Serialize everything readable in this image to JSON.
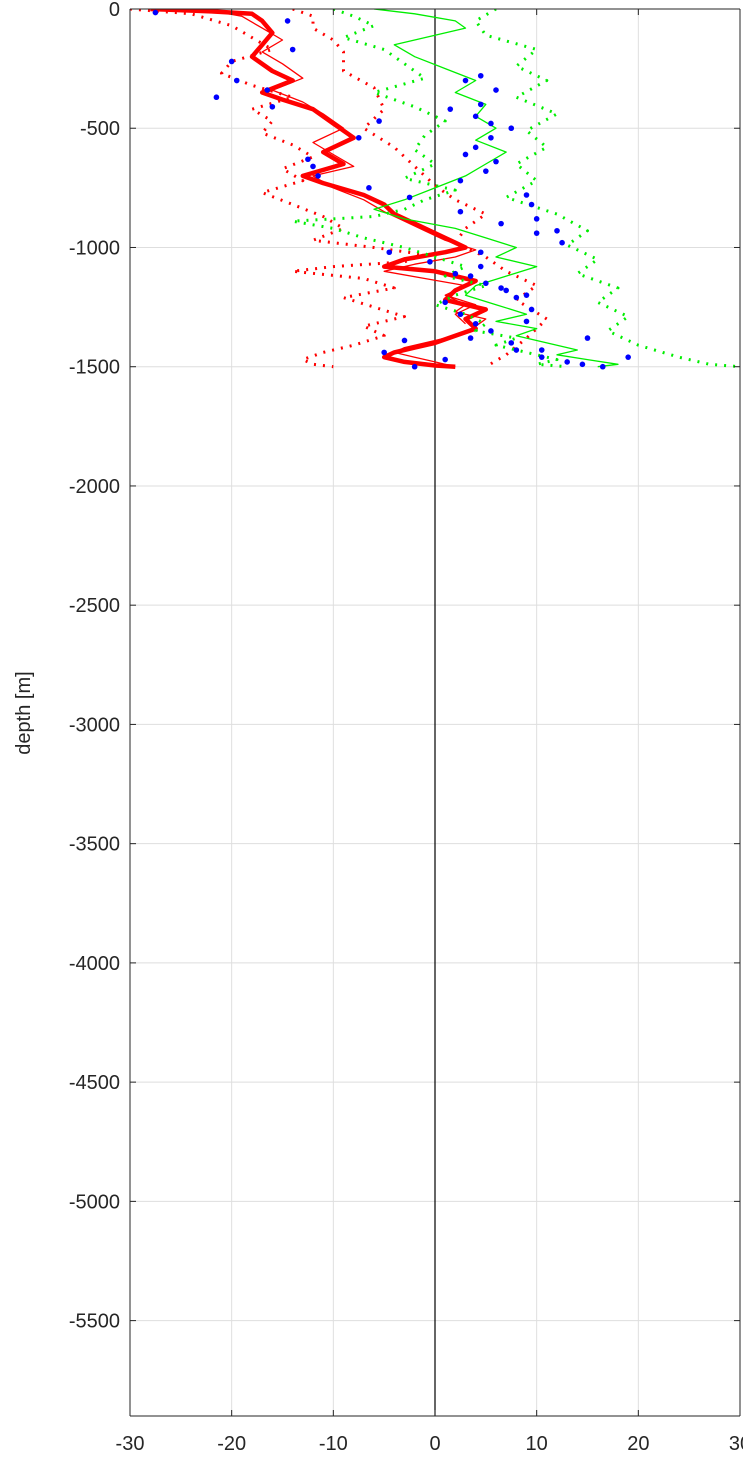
{
  "chart_data": {
    "type": "line",
    "title": "",
    "xlabel": "",
    "ylabel": "depth [m]",
    "xlim": [
      -30,
      30
    ],
    "ylim": [
      -5900,
      0
    ],
    "xticks": [
      -30,
      -20,
      -10,
      0,
      10,
      20,
      30
    ],
    "xtick_labels": [
      "-30",
      "-20",
      "-10",
      "0",
      "10",
      "20",
      "30"
    ],
    "yticks": [
      0,
      -500,
      -1000,
      -1500,
      -2000,
      -2500,
      -3000,
      -3500,
      -4000,
      -4500,
      -5000,
      -5500
    ],
    "ytick_labels": [
      "0",
      "-500",
      "-1000",
      "-1500",
      "-2000",
      "-2500",
      "-3000",
      "-3500",
      "-4000",
      "-4500",
      "-5000",
      "-5500"
    ],
    "grid": true,
    "legend": "none",
    "zero_line": 0,
    "series": [
      {
        "color": "#ff0000",
        "style": "solid-bold",
        "x": [
          -28,
          -22,
          -18,
          -17,
          -16,
          -17,
          -18,
          -16,
          -14,
          -17,
          -15,
          -12,
          -10,
          -8,
          -11,
          -9,
          -13,
          -11,
          -7,
          -5,
          -4,
          -2,
          0,
          2,
          3,
          1,
          -3,
          -5,
          0,
          4,
          2,
          1,
          5,
          3,
          4,
          2,
          0,
          -2,
          -4,
          -5,
          -3,
          0,
          2
        ],
        "y": [
          0,
          -10,
          -20,
          -50,
          -100,
          -150,
          -200,
          -260,
          -300,
          -350,
          -380,
          -420,
          -480,
          -540,
          -600,
          -650,
          -700,
          -730,
          -780,
          -820,
          -860,
          -900,
          -940,
          -980,
          -1000,
          -1020,
          -1050,
          -1080,
          -1100,
          -1140,
          -1180,
          -1220,
          -1260,
          -1300,
          -1340,
          -1370,
          -1400,
          -1420,
          -1440,
          -1460,
          -1480,
          -1495,
          -1500
        ]
      },
      {
        "color": "#ff0000",
        "style": "solid-thin-upper",
        "x": [
          -23,
          -19,
          -17,
          -15,
          -17,
          -15,
          -13,
          -16,
          -13,
          -11,
          -9,
          -12,
          -10,
          -8,
          -12,
          -10,
          -7,
          -5,
          -3,
          -1,
          1,
          4,
          2,
          -2,
          -5,
          -1,
          3,
          1,
          4,
          2,
          3
        ],
        "y": [
          0,
          -30,
          -80,
          -130,
          -180,
          -230,
          -290,
          -340,
          -390,
          -440,
          -500,
          -560,
          -610,
          -660,
          -700,
          -750,
          -800,
          -850,
          -890,
          -930,
          -970,
          -1010,
          -1040,
          -1070,
          -1100,
          -1130,
          -1160,
          -1200,
          -1240,
          -1280,
          -1320
        ]
      },
      {
        "color": "#ff0000",
        "style": "solid-thin-lower",
        "x": [
          1,
          3,
          2,
          5,
          4,
          3,
          1,
          -1,
          -3,
          -4,
          -2,
          0,
          2
        ],
        "y": [
          -1200,
          -1240,
          -1270,
          -1300,
          -1330,
          -1360,
          -1380,
          -1400,
          -1420,
          -1440,
          -1460,
          -1480,
          -1500
        ]
      },
      {
        "color": "#ff0000",
        "style": "dotted",
        "x": [
          -30,
          -24,
          -20,
          -18,
          -16,
          -20,
          -21,
          -18,
          -14,
          -18,
          -16,
          -17,
          -14,
          -12,
          -15,
          -13,
          -17,
          -14,
          -11,
          -9,
          -12,
          -6,
          -1,
          -3,
          -10,
          -14,
          -7,
          -4,
          -9,
          -6,
          -3,
          -7,
          -5,
          -8,
          -11,
          -13,
          -12,
          -10
        ],
        "y": [
          0,
          -20,
          -70,
          -120,
          -170,
          -220,
          -270,
          -320,
          -370,
          -420,
          -470,
          -520,
          -570,
          -620,
          -670,
          -720,
          -770,
          -820,
          -870,
          -920,
          -970,
          -1000,
          -1030,
          -1060,
          -1080,
          -1100,
          -1130,
          -1170,
          -1210,
          -1250,
          -1290,
          -1330,
          -1370,
          -1410,
          -1440,
          -1470,
          -1490,
          -1500
        ]
      },
      {
        "color": "#ff0000",
        "style": "dotted",
        "x": [
          -14,
          -12,
          -12,
          -10,
          -9,
          -9,
          -6,
          -5,
          -7,
          -4,
          -2,
          0,
          2,
          5,
          3,
          2,
          5,
          7,
          10,
          8,
          11,
          9,
          7,
          5
        ],
        "y": [
          0,
          -30,
          -80,
          -130,
          -180,
          -260,
          -330,
          -420,
          -500,
          -580,
          -660,
          -740,
          -800,
          -860,
          -920,
          -980,
          -1040,
          -1100,
          -1160,
          -1220,
          -1300,
          -1380,
          -1450,
          -1500
        ]
      },
      {
        "color": "#00ee00",
        "style": "solid",
        "x": [
          -6,
          -2,
          2,
          3,
          0,
          -4,
          -2,
          1,
          4,
          2,
          5,
          4,
          6,
          4,
          7,
          5,
          3,
          0,
          -3,
          -6,
          -3,
          2,
          5,
          8,
          6,
          10,
          7,
          4,
          3,
          6,
          9,
          6,
          10,
          8,
          11,
          14,
          12,
          15,
          18,
          16
        ],
        "y": [
          0,
          -20,
          -50,
          -80,
          -110,
          -150,
          -200,
          -250,
          -300,
          -350,
          -400,
          -450,
          -500,
          -550,
          -600,
          -650,
          -700,
          -750,
          -800,
          -840,
          -880,
          -920,
          -960,
          -1000,
          -1040,
          -1080,
          -1120,
          -1160,
          -1200,
          -1240,
          -1280,
          -1310,
          -1340,
          -1370,
          -1400,
          -1430,
          -1450,
          -1470,
          -1490,
          -1500
        ]
      },
      {
        "color": "#00ee00",
        "style": "dotted",
        "x": [
          -10,
          -8,
          -6,
          -9,
          -5,
          -3,
          -1,
          -6,
          -2,
          1,
          -1,
          -2,
          0,
          -3,
          2,
          -1,
          -3,
          -6,
          -14,
          -10,
          -7,
          -3,
          0,
          3,
          1,
          5,
          2,
          0,
          3,
          5,
          4,
          8,
          6,
          9,
          12,
          10,
          13
        ],
        "y": [
          0,
          -30,
          -70,
          -120,
          -170,
          -230,
          -290,
          -350,
          -410,
          -470,
          -530,
          -590,
          -650,
          -710,
          -760,
          -800,
          -840,
          -870,
          -890,
          -920,
          -960,
          -1000,
          -1040,
          -1080,
          -1120,
          -1160,
          -1200,
          -1240,
          -1280,
          -1320,
          -1350,
          -1380,
          -1410,
          -1440,
          -1470,
          -1490,
          -1500
        ]
      },
      {
        "color": "#00ee00",
        "style": "dotted",
        "x": [
          6,
          4,
          5,
          10,
          8,
          11,
          8,
          12,
          9,
          11,
          8,
          10,
          7,
          12,
          15,
          13,
          16,
          14,
          18,
          16,
          19,
          17,
          20,
          24,
          27,
          30
        ],
        "y": [
          0,
          -50,
          -110,
          -170,
          -240,
          -300,
          -370,
          -440,
          -510,
          -580,
          -650,
          -720,
          -790,
          -860,
          -930,
          -990,
          -1050,
          -1110,
          -1170,
          -1230,
          -1290,
          -1350,
          -1410,
          -1460,
          -1490,
          -1500
        ]
      }
    ],
    "markers": {
      "color": "#0000ff",
      "x": [
        -27.5,
        -14.5,
        -14,
        -20,
        -19.5,
        -16.5,
        -21.5,
        -16,
        -5.5,
        -7.5,
        -12.5,
        -12,
        -11.5,
        -6.5,
        -2.5,
        2.5,
        6.5,
        10,
        -4.5,
        -0.5,
        2,
        5,
        7,
        9,
        1,
        2.5,
        4,
        5.5,
        3.5,
        7.5,
        8,
        10.5,
        13,
        14.5,
        10.5,
        15,
        19,
        16.5,
        1,
        -5,
        -3,
        -2,
        3,
        4.5,
        6,
        4.5,
        1.5,
        4,
        5.5,
        7.5,
        5.5,
        4,
        3,
        6,
        5,
        2.5,
        9,
        9.5,
        10,
        12,
        12.5,
        4.5,
        4.5,
        3.5,
        6.5,
        8,
        9.5,
        9
      ],
      "y": [
        -15,
        -50,
        -170,
        -220,
        -300,
        -340,
        -370,
        -410,
        -470,
        -540,
        -630,
        -660,
        -700,
        -750,
        -790,
        -850,
        -900,
        -940,
        -1020,
        -1060,
        -1110,
        -1150,
        -1180,
        -1200,
        -1230,
        -1280,
        -1320,
        -1350,
        -1380,
        -1400,
        -1430,
        -1460,
        -1480,
        -1490,
        -1430,
        -1380,
        -1460,
        -1500,
        -1470,
        -1440,
        -1390,
        -1500,
        -300,
        -280,
        -340,
        -400,
        -420,
        -450,
        -480,
        -500,
        -540,
        -580,
        -610,
        -640,
        -680,
        -720,
        -780,
        -820,
        -880,
        -930,
        -980,
        -1020,
        -1080,
        -1120,
        -1170,
        -1210,
        -1260,
        -1310
      ]
    }
  }
}
